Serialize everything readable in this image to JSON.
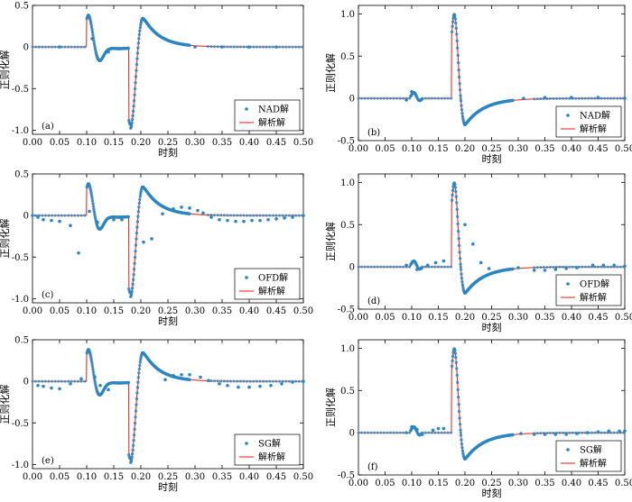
{
  "figure": {
    "series_colors": {
      "dots": "#2e86c1",
      "line": "#e8302a"
    }
  },
  "chart_data": [
    {
      "type": "line",
      "panel": "(a)",
      "title": "",
      "xlabel": "时刻",
      "ylabel": "正则化解",
      "xlim": [
        0,
        0.5
      ],
      "ylim": [
        -1.05,
        0.5
      ],
      "xticks": [
        "0.00",
        "0.05",
        "0.10",
        "0.15",
        "0.20",
        "0.25",
        "0.30",
        "0.35",
        "0.40",
        "0.45",
        "0.50"
      ],
      "yticks": [
        "0.5",
        "0",
        "-0.5",
        "-1.0"
      ],
      "legend": [
        "NAD解",
        "解析解"
      ],
      "signal": "A",
      "numeric_dots": [
        [
          0.05,
          0.0
        ],
        [
          0.11,
          0.1
        ],
        [
          0.125,
          -0.16
        ],
        [
          0.14,
          -0.06
        ],
        [
          0.3,
          0.0
        ],
        [
          0.35,
          0.0
        ],
        [
          0.4,
          0.0
        ],
        [
          0.45,
          0.0
        ]
      ]
    },
    {
      "type": "line",
      "panel": "(b)",
      "title": "",
      "xlabel": "时刻",
      "ylabel": "正则化解",
      "xlim": [
        0,
        0.5
      ],
      "ylim": [
        -0.5,
        1.1
      ],
      "xticks": [
        "0.00",
        "0.05",
        "0.10",
        "0.15",
        "0.20",
        "0.25",
        "0.30",
        "0.35",
        "0.40",
        "0.45",
        "0.50"
      ],
      "yticks": [
        "1.0",
        "0.5",
        "0",
        "-0.5"
      ],
      "legend": [
        "NAD解",
        "解析解"
      ],
      "signal": "B",
      "numeric_dots": [
        [
          0.1,
          0.08
        ],
        [
          0.09,
          -0.02
        ],
        [
          0.31,
          0.0
        ],
        [
          0.35,
          0.01
        ],
        [
          0.4,
          0.01
        ],
        [
          0.45,
          0.01
        ],
        [
          0.5,
          0.0
        ]
      ]
    },
    {
      "type": "line",
      "panel": "(c)",
      "title": "",
      "xlabel": "时刻",
      "ylabel": "正则化解",
      "xlim": [
        0,
        0.5
      ],
      "ylim": [
        -1.05,
        0.5
      ],
      "xticks": [
        "0.00",
        "0.05",
        "0.10",
        "0.15",
        "0.20",
        "0.25",
        "0.30",
        "0.35",
        "0.40",
        "0.45",
        "0.50"
      ],
      "yticks": [
        "0.5",
        "0",
        "-0.5",
        "-1.0"
      ],
      "legend": [
        "OFD解",
        "解析解"
      ],
      "signal": "A",
      "numeric_dots": [
        [
          0.0,
          0.0
        ],
        [
          0.01,
          -0.02
        ],
        [
          0.02,
          -0.05
        ],
        [
          0.035,
          -0.06
        ],
        [
          0.05,
          -0.07
        ],
        [
          0.07,
          -0.12
        ],
        [
          0.085,
          -0.45
        ],
        [
          0.105,
          0.05
        ],
        [
          0.12,
          -0.08
        ],
        [
          0.15,
          -0.05
        ],
        [
          0.165,
          -0.05
        ],
        [
          0.205,
          -0.32
        ],
        [
          0.22,
          -0.28
        ],
        [
          0.24,
          0.02
        ],
        [
          0.26,
          0.08
        ],
        [
          0.275,
          0.1
        ],
        [
          0.29,
          0.09
        ],
        [
          0.305,
          0.06
        ],
        [
          0.315,
          0.03
        ],
        [
          0.33,
          -0.02
        ],
        [
          0.345,
          -0.05
        ],
        [
          0.36,
          -0.06
        ],
        [
          0.375,
          -0.07
        ],
        [
          0.39,
          -0.07
        ],
        [
          0.405,
          -0.06
        ],
        [
          0.42,
          -0.06
        ],
        [
          0.435,
          -0.05
        ],
        [
          0.45,
          -0.04
        ],
        [
          0.465,
          -0.03
        ],
        [
          0.48,
          -0.02
        ],
        [
          0.5,
          0.0
        ]
      ]
    },
    {
      "type": "line",
      "panel": "(d)",
      "title": "",
      "xlabel": "时刻",
      "ylabel": "正则化解",
      "xlim": [
        0,
        0.5
      ],
      "ylim": [
        -0.5,
        1.1
      ],
      "xticks": [
        "0.00",
        "0.05",
        "0.10",
        "0.15",
        "0.20",
        "0.25",
        "0.30",
        "0.35",
        "0.40",
        "0.45",
        "0.50"
      ],
      "yticks": [
        "1.0",
        "0.5",
        "0",
        "-0.5"
      ],
      "legend": [
        "OFD解",
        "解析解"
      ],
      "signal": "B",
      "numeric_dots": [
        [
          0.09,
          0.02
        ],
        [
          0.11,
          -0.03
        ],
        [
          0.13,
          0.02
        ],
        [
          0.145,
          0.05
        ],
        [
          0.16,
          0.07
        ],
        [
          0.2,
          0.5
        ],
        [
          0.215,
          0.27
        ],
        [
          0.23,
          0.05
        ],
        [
          0.245,
          -0.02
        ],
        [
          0.3,
          -0.01
        ],
        [
          0.33,
          -0.04
        ],
        [
          0.35,
          -0.04
        ],
        [
          0.37,
          -0.03
        ],
        [
          0.39,
          -0.02
        ],
        [
          0.41,
          -0.01
        ],
        [
          0.44,
          0.02
        ],
        [
          0.46,
          0.02
        ],
        [
          0.48,
          0.02
        ],
        [
          0.5,
          0.01
        ]
      ]
    },
    {
      "type": "line",
      "panel": "(e)",
      "title": "",
      "xlabel": "时刻",
      "ylabel": "正则化解",
      "xlim": [
        0,
        0.5
      ],
      "ylim": [
        -1.05,
        0.5
      ],
      "xticks": [
        "0.00",
        "0.05",
        "0.10",
        "0.15",
        "0.20",
        "0.25",
        "0.30",
        "0.35",
        "0.40",
        "0.45",
        "0.50"
      ],
      "yticks": [
        "0.5",
        "0",
        "-0.5",
        "-1.0"
      ],
      "legend": [
        "SG解",
        "解析解"
      ],
      "signal": "A",
      "numeric_dots": [
        [
          0.01,
          -0.05
        ],
        [
          0.02,
          -0.06
        ],
        [
          0.035,
          -0.08
        ],
        [
          0.05,
          -0.09
        ],
        [
          0.07,
          -0.03
        ],
        [
          0.09,
          0.03
        ],
        [
          0.115,
          0.05
        ],
        [
          0.125,
          -0.05
        ],
        [
          0.14,
          -0.1
        ],
        [
          0.245,
          0.02
        ],
        [
          0.26,
          0.07
        ],
        [
          0.275,
          0.08
        ],
        [
          0.29,
          0.08
        ],
        [
          0.31,
          0.05
        ],
        [
          0.325,
          0.01
        ],
        [
          0.345,
          -0.03
        ],
        [
          0.36,
          -0.05
        ],
        [
          0.38,
          -0.07
        ],
        [
          0.4,
          -0.07
        ],
        [
          0.42,
          -0.06
        ],
        [
          0.44,
          -0.05
        ],
        [
          0.46,
          -0.03
        ],
        [
          0.48,
          -0.01
        ],
        [
          0.5,
          0.0
        ]
      ]
    },
    {
      "type": "line",
      "panel": "(f)",
      "title": "",
      "xlabel": "时刻",
      "ylabel": "正则化解",
      "xlim": [
        0,
        0.5
      ],
      "ylim": [
        -0.5,
        1.1
      ],
      "xticks": [
        "0.00",
        "0.05",
        "0.10",
        "0.15",
        "0.20",
        "0.25",
        "0.30",
        "0.35",
        "0.40",
        "0.45",
        "0.50"
      ],
      "yticks": [
        "1.0",
        "0.5",
        "0",
        "-0.5"
      ],
      "legend": [
        "SG解",
        "解析解"
      ],
      "signal": "B",
      "numeric_dots": [
        [
          0.09,
          0.0
        ],
        [
          0.1,
          0.07
        ],
        [
          0.11,
          0.04
        ],
        [
          0.12,
          -0.02
        ],
        [
          0.14,
          0.03
        ],
        [
          0.15,
          0.05
        ],
        [
          0.16,
          0.05
        ],
        [
          0.305,
          -0.01
        ],
        [
          0.33,
          -0.02
        ],
        [
          0.35,
          -0.02
        ],
        [
          0.37,
          -0.02
        ],
        [
          0.39,
          -0.02
        ],
        [
          0.41,
          -0.01
        ],
        [
          0.43,
          0.0
        ],
        [
          0.45,
          0.01
        ],
        [
          0.47,
          0.02
        ],
        [
          0.49,
          0.02
        ],
        [
          0.5,
          0.02
        ]
      ]
    }
  ]
}
